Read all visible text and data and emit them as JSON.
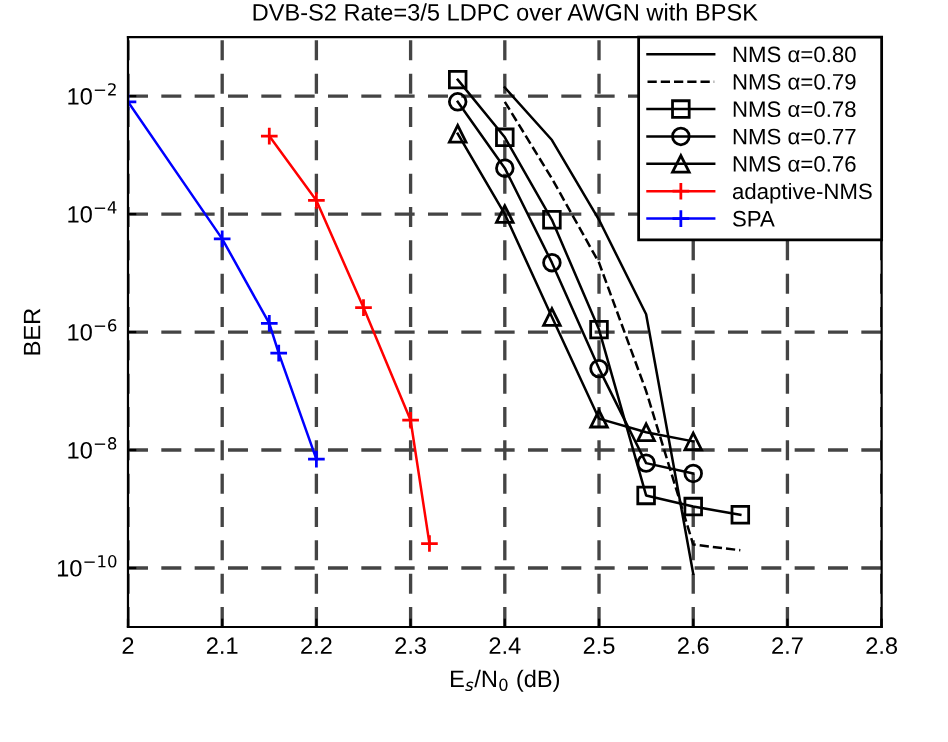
{
  "chart_data": {
    "type": "line",
    "title": "DVB-S2 Rate=3/5 LDPC over AWGN with BPSK",
    "xlabel": "E$_{s}$/N$_{0}$ (dB)",
    "ylabel": "BER",
    "log": "y",
    "xlim": [
      2,
      2.8
    ],
    "xticks": [
      2,
      2.1,
      2.2,
      2.3,
      2.4,
      2.5,
      2.6,
      2.7,
      2.8
    ],
    "ylim": [
      1e-11,
      0.1
    ],
    "yticks": [
      {
        "value": 1e-10,
        "label": "10$^{−10}$"
      },
      {
        "value": 1e-08,
        "label": "10$^{−8}$"
      },
      {
        "value": 1e-06,
        "label": "10$^{−6}$"
      },
      {
        "value": 0.0001,
        "label": "10$^{−4}$"
      },
      {
        "value": 0.01,
        "label": "10$^{−2}$"
      }
    ],
    "grid": true,
    "legend": "top right",
    "series": [
      {
        "name": "NMS α=0.80",
        "color": "#000000",
        "marker": "none",
        "line_style": "solid",
        "x": [
          2.4,
          2.45,
          2.5,
          2.55,
          2.6
        ],
        "values": [
          0.014,
          0.0018,
          8e-05,
          2e-06,
          8e-11
        ]
      },
      {
        "name": "NMS α=0.79",
        "color": "#000000",
        "marker": "none",
        "line_style": "dashed",
        "x": [
          2.4,
          2.45,
          2.5,
          2.55,
          2.6,
          2.65
        ],
        "values": [
          0.008,
          0.0004,
          1.5e-05,
          1e-07,
          2.5e-10,
          2e-10
        ]
      },
      {
        "name": "NMS α=0.78",
        "color": "#000000",
        "marker": "square",
        "line_style": "solid",
        "x": [
          2.35,
          2.4,
          2.45,
          2.5,
          2.55,
          2.6,
          2.65
        ],
        "values": [
          0.019,
          0.002,
          8e-05,
          1.1e-06,
          1.7e-09,
          1.1e-09,
          8e-10
        ]
      },
      {
        "name": "NMS α=0.77",
        "color": "#000000",
        "marker": "circle",
        "line_style": "solid",
        "x": [
          2.35,
          2.4,
          2.45,
          2.5,
          2.55,
          2.6
        ],
        "values": [
          0.008,
          0.0006,
          1.5e-05,
          2.4e-07,
          6e-09,
          4e-09
        ]
      },
      {
        "name": "NMS α=0.76",
        "color": "#000000",
        "marker": "triangle",
        "line_style": "solid",
        "x": [
          2.35,
          2.4,
          2.45,
          2.5,
          2.55,
          2.6
        ],
        "values": [
          0.0023,
          0.0001,
          1.8e-06,
          3.4e-08,
          2e-08,
          1.4e-08
        ]
      },
      {
        "name": "adaptive-NMS",
        "color": "#ff0000",
        "marker": "cross",
        "line_style": "solid",
        "x": [
          2.15,
          2.2,
          2.25,
          2.3,
          2.32
        ],
        "values": [
          0.0021,
          0.00017,
          2.6e-06,
          3.2e-08,
          2.6e-10
        ]
      },
      {
        "name": "SPA",
        "color": "#0000ff",
        "marker": "cross",
        "line_style": "solid",
        "x": [
          2,
          2.1,
          2.15,
          2.16,
          2.2
        ],
        "values": [
          0.008,
          3.8e-05,
          1.4e-06,
          4.4e-07,
          7e-09
        ]
      }
    ]
  }
}
